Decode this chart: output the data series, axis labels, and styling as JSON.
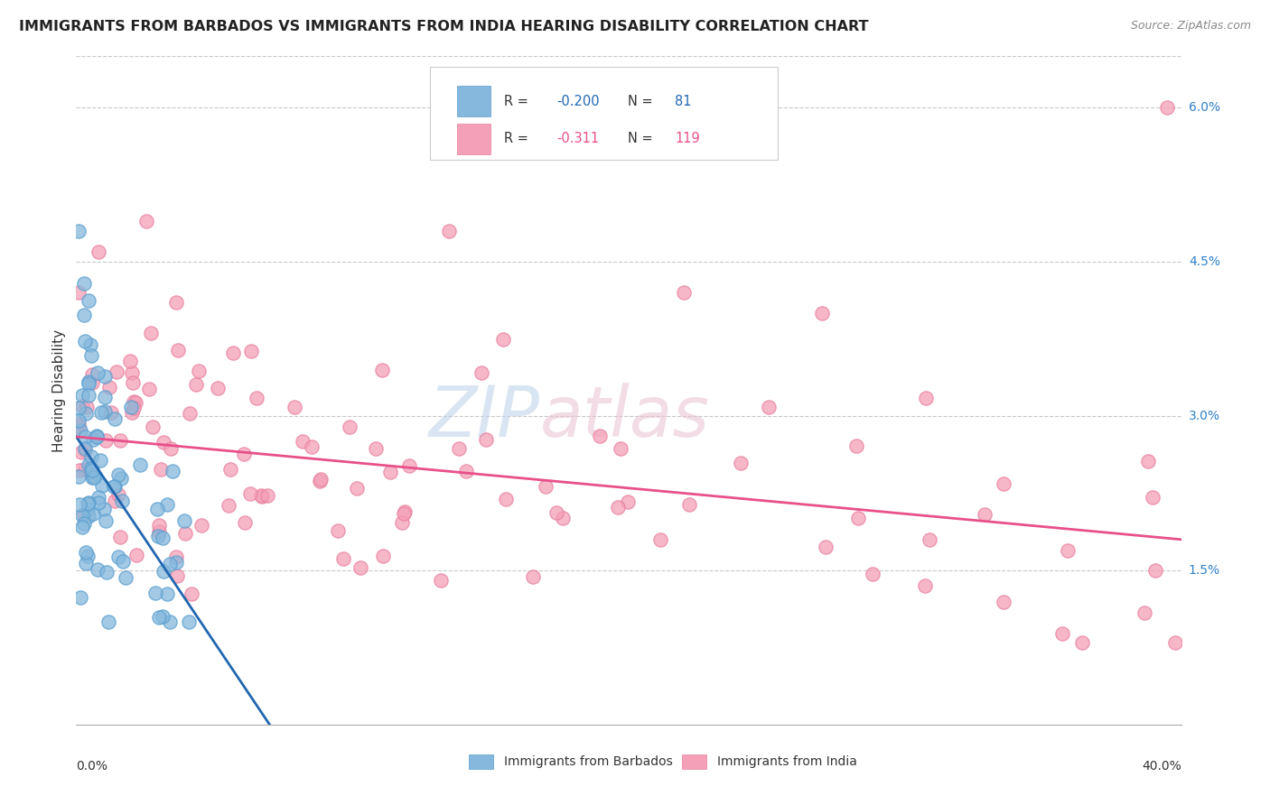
{
  "title": "IMMIGRANTS FROM BARBADOS VS IMMIGRANTS FROM INDIA HEARING DISABILITY CORRELATION CHART",
  "source": "Source: ZipAtlas.com",
  "ylabel": "Hearing Disability",
  "xlim": [
    0.0,
    0.4
  ],
  "ylim": [
    0.0,
    0.065
  ],
  "legend_blue_R": "-0.200",
  "legend_blue_N": "81",
  "legend_pink_R": "-0.311",
  "legend_pink_N": "119",
  "blue_color": "#85b8dc",
  "pink_color": "#f4a0b8",
  "blue_line_color": "#2167b0",
  "pink_line_color": "#e8508a",
  "blue_edge_color": "#5a9ecf",
  "pink_edge_color": "#e880a0",
  "right_label_color": "#3080c8",
  "watermark_color": "#c8d8e8",
  "watermark_pink": "#e8c0d0"
}
